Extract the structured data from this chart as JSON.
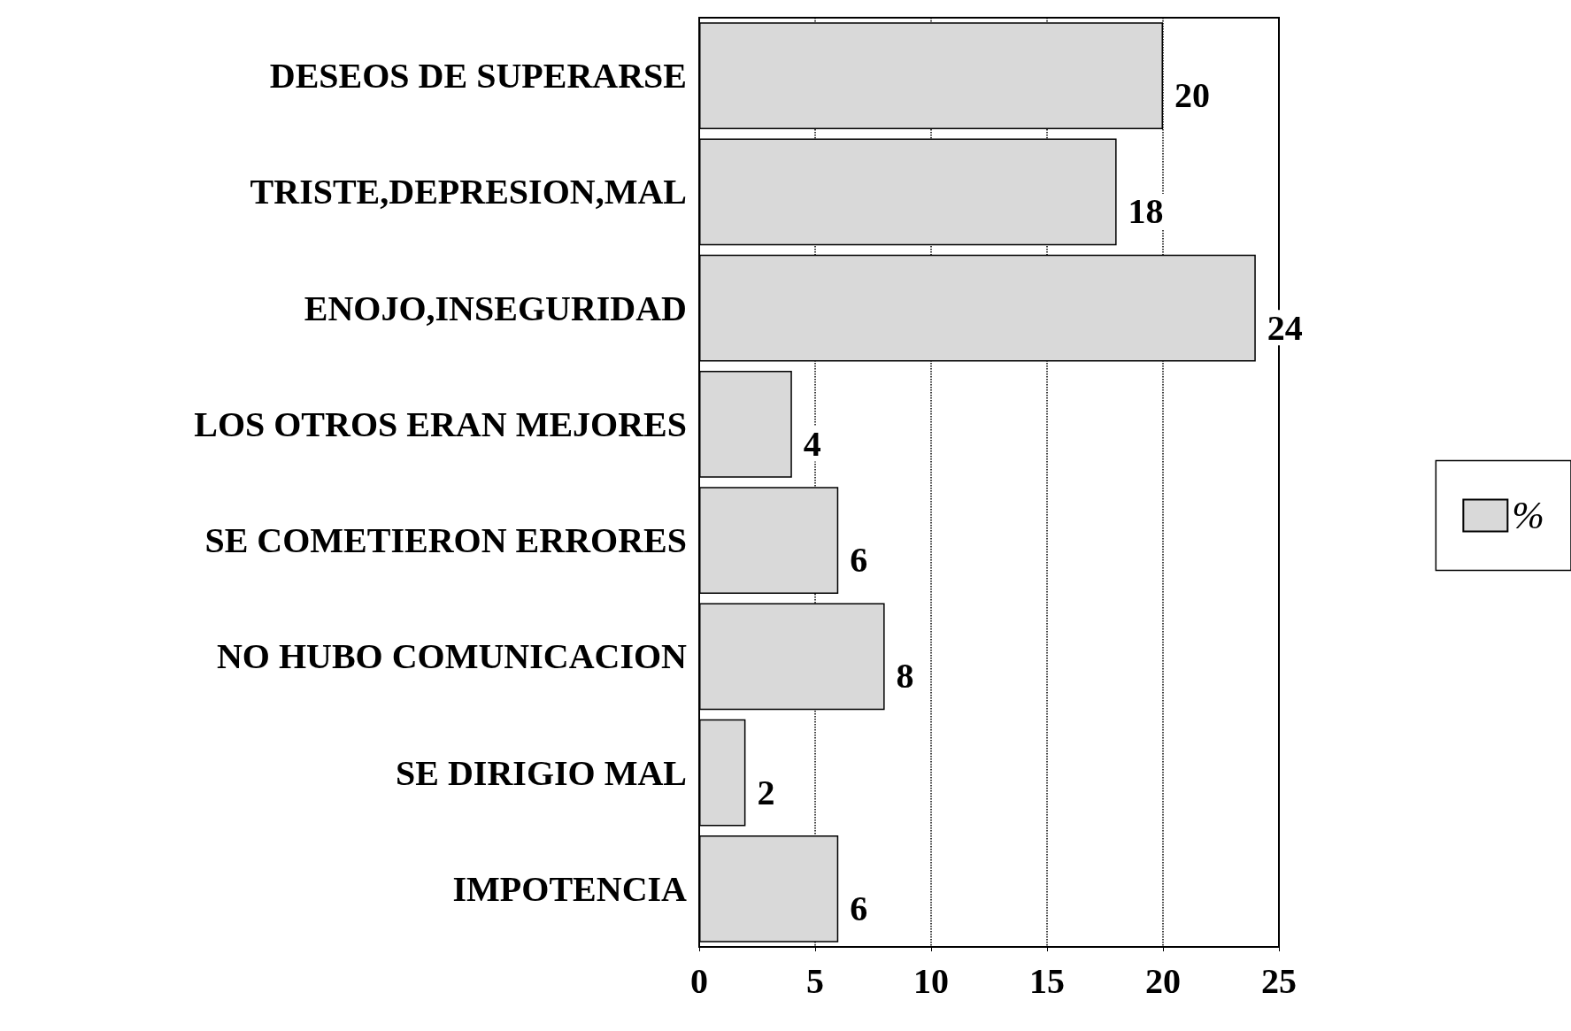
{
  "chart_data": {
    "type": "bar",
    "orientation": "horizontal",
    "categories": [
      "DESEOS DE SUPERARSE",
      "TRISTE,DEPRESION,MAL",
      "ENOJO,INSEGURIDAD",
      "LOS OTROS ERAN MEJORES",
      "SE COMETIERON ERRORES",
      "NO HUBO COMUNICACION",
      "SE DIRIGIO MAL",
      "IMPOTENCIA"
    ],
    "series": [
      {
        "name": "%",
        "color": "#d9d9d9",
        "values": [
          20,
          18,
          24,
          4,
          6,
          8,
          2,
          6
        ]
      }
    ],
    "xlim": [
      0,
      25
    ],
    "xticks": [
      0,
      5,
      10,
      15,
      20,
      25
    ],
    "grid": "x",
    "legend": "right",
    "data_labels": true
  }
}
